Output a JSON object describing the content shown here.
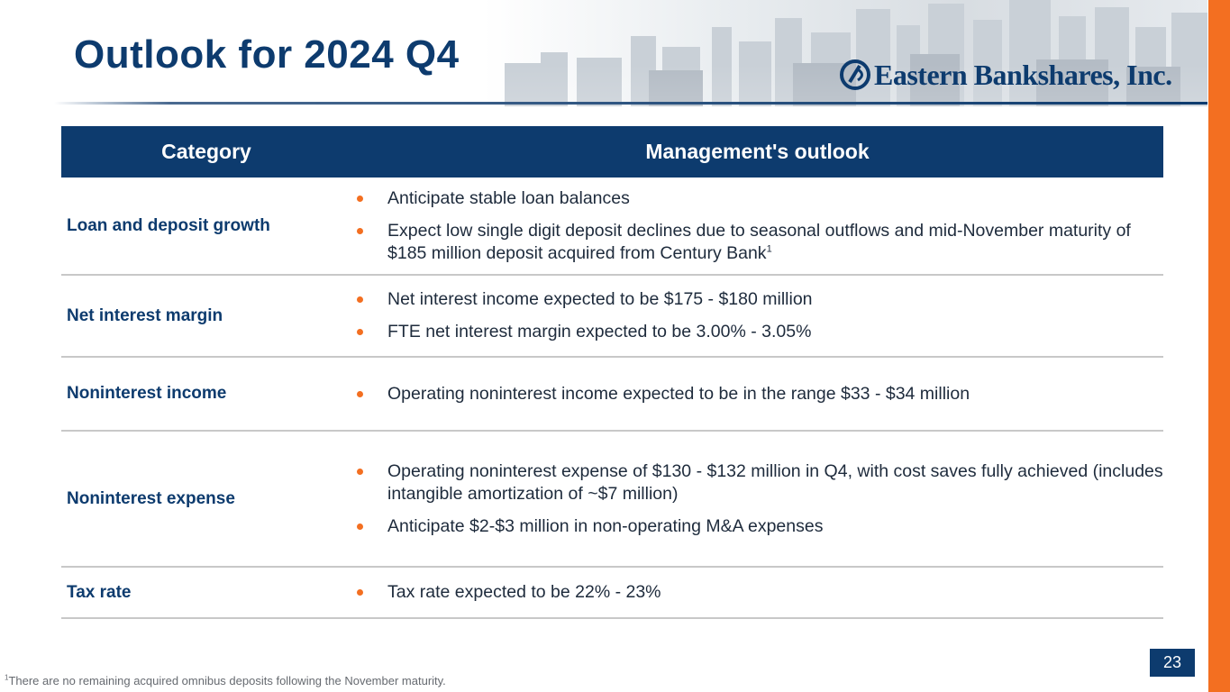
{
  "slide": {
    "title": "Outlook for 2024 Q4",
    "page_number": "23"
  },
  "logo": {
    "text": "Eastern Bankshares, Inc."
  },
  "table": {
    "headers": [
      "Category",
      "Management's outlook"
    ],
    "rows": [
      {
        "category": "Loan and deposit growth",
        "bullets": [
          "Anticipate stable loan balances",
          "Expect low single digit deposit declines due to seasonal outflows and mid-November maturity of $185 million deposit acquired from Century Bank"
        ],
        "footnote_ref": "1"
      },
      {
        "category": "Net interest margin",
        "bullets": [
          "Net interest income expected to be $175 - $180 million",
          "FTE net interest margin expected to be 3.00% - 3.05%"
        ]
      },
      {
        "category": "Noninterest income",
        "bullets": [
          "Operating noninterest income expected to be in the range $33 - $34 million"
        ]
      },
      {
        "category": "Noninterest expense",
        "bullets": [
          "Operating noninterest expense of $130 - $132 million in Q4, with cost saves fully achieved (includes intangible amortization of ~$7 million)",
          "Anticipate $2-$3 million in non-operating M&A expenses"
        ]
      },
      {
        "category": "Tax rate",
        "bullets": [
          "Tax rate expected to be 22% - 23%"
        ]
      }
    ]
  },
  "footnote": {
    "marker": "1",
    "text": "There are no remaining acquired omnibus deposits following the November maturity."
  },
  "colors": {
    "navy": "#0d3b6e",
    "orange": "#f36f21",
    "rule": "#c8c8c8"
  },
  "icons": {
    "bullet": "bullet-dot-icon",
    "logo_mark": "eastern-logo-mark-icon"
  }
}
